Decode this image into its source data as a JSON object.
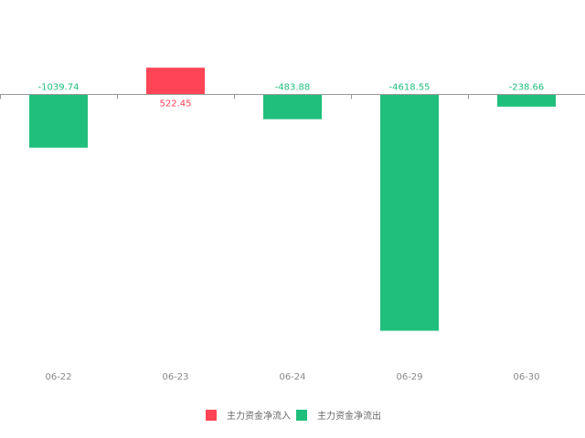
{
  "chart_data": {
    "type": "bar",
    "categories": [
      "06-22",
      "06-23",
      "06-24",
      "06-29",
      "06-30"
    ],
    "values": [
      -1039.74,
      522.45,
      -483.88,
      -4618.55,
      -238.66
    ],
    "labels": [
      "-1039.74",
      "522.45",
      "-483.88",
      "-4618.55",
      "-238.66"
    ],
    "legend": [
      {
        "name": "主力资金净流入",
        "color": "#ff4455"
      },
      {
        "name": "主力资金净流出",
        "color": "#21bf7c"
      }
    ],
    "legend_position": "bottom-center",
    "grid": false,
    "colors": {
      "positive": "#ff4455",
      "negative": "#21bf7c",
      "axis": "#999999",
      "tick_text": "#888888",
      "legend_text": "#666666"
    }
  }
}
